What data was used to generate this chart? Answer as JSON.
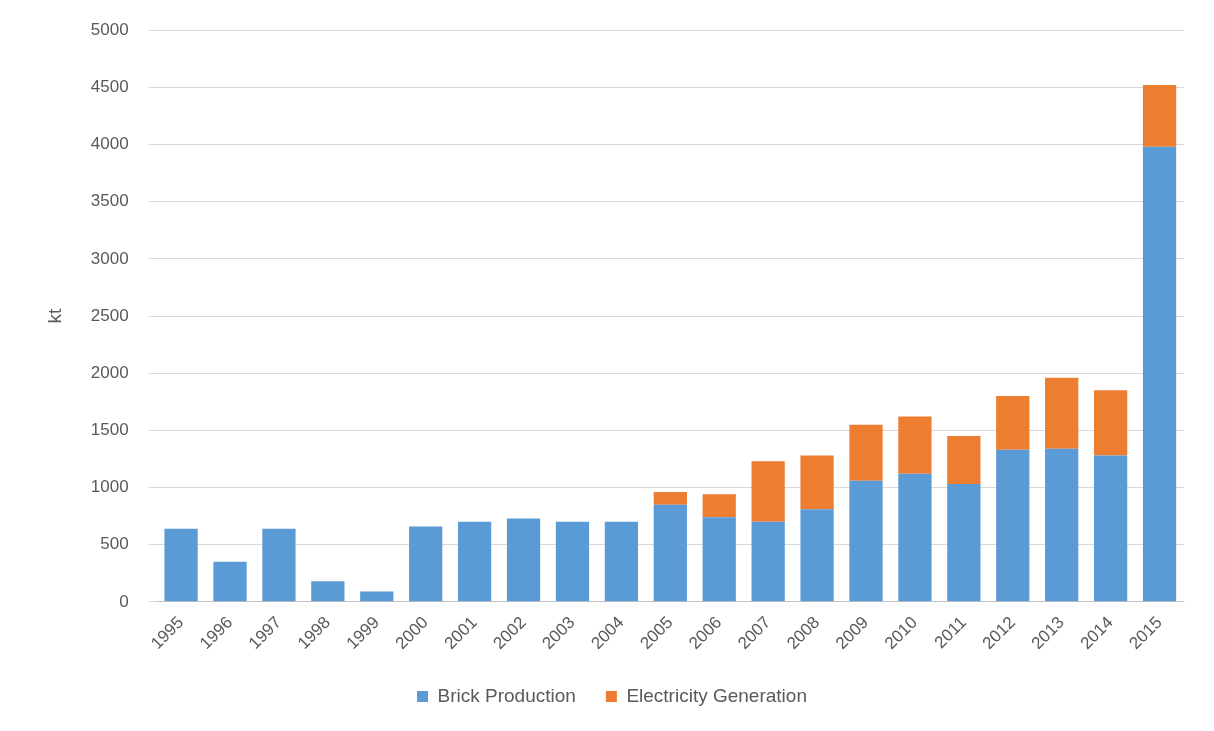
{
  "chart_data": {
    "type": "bar",
    "stacked": true,
    "ylabel": "kt",
    "categories": [
      "1995",
      "1996",
      "1997",
      "1998",
      "1999",
      "2000",
      "2001",
      "2002",
      "2003",
      "2004",
      "2005",
      "2006",
      "2007",
      "2008",
      "2009",
      "2010",
      "2011",
      "2012",
      "2013",
      "2014",
      "2015"
    ],
    "series": [
      {
        "name": "Brick Production",
        "color": "#5b9bd5",
        "values": [
          640,
          350,
          640,
          180,
          90,
          660,
          700,
          730,
          700,
          700,
          850,
          740,
          700,
          810,
          1060,
          1120,
          1030,
          1330,
          1340,
          1280,
          3980
        ]
      },
      {
        "name": "Electricity Generation",
        "color": "#ed7d31",
        "values": [
          null,
          null,
          null,
          null,
          null,
          null,
          null,
          null,
          null,
          null,
          110,
          200,
          530,
          470,
          490,
          500,
          420,
          470,
          620,
          570,
          540
        ]
      }
    ],
    "ylim": [
      0,
      5000
    ],
    "yticks": [
      0,
      500,
      1000,
      1500,
      2000,
      2500,
      3000,
      3500,
      4000,
      4500,
      5000
    ],
    "grid": "y",
    "legend": "bottom"
  }
}
